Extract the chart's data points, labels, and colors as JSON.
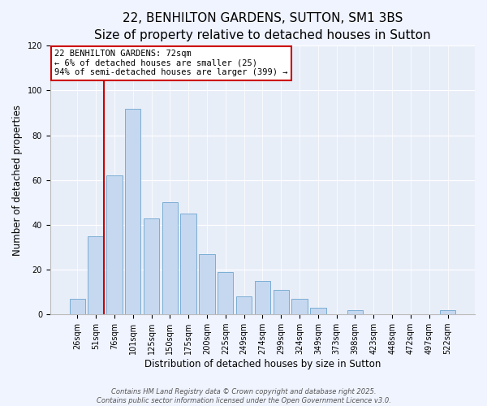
{
  "title": "22, BENHILTON GARDENS, SUTTON, SM1 3BS",
  "subtitle": "Size of property relative to detached houses in Sutton",
  "xlabel": "Distribution of detached houses by size in Sutton",
  "ylabel": "Number of detached properties",
  "bar_labels": [
    "26sqm",
    "51sqm",
    "76sqm",
    "101sqm",
    "125sqm",
    "150sqm",
    "175sqm",
    "200sqm",
    "225sqm",
    "249sqm",
    "274sqm",
    "299sqm",
    "324sqm",
    "349sqm",
    "373sqm",
    "398sqm",
    "423sqm",
    "448sqm",
    "472sqm",
    "497sqm",
    "522sqm"
  ],
  "bar_values": [
    7,
    35,
    62,
    92,
    43,
    50,
    45,
    27,
    19,
    8,
    15,
    11,
    7,
    3,
    0,
    2,
    0,
    0,
    0,
    0,
    2
  ],
  "bar_color": "#c5d8f0",
  "bar_edge_color": "#7badd4",
  "marker_color": "#cc0000",
  "annotation_title": "22 BENHILTON GARDENS: 72sqm",
  "annotation_line1": "← 6% of detached houses are smaller (25)",
  "annotation_line2": "94% of semi-detached houses are larger (399) →",
  "annotation_box_color": "#ffffff",
  "annotation_box_edge_color": "#cc0000",
  "ylim": [
    0,
    120
  ],
  "yticks": [
    0,
    20,
    40,
    60,
    80,
    100,
    120
  ],
  "footnote1": "Contains HM Land Registry data © Crown copyright and database right 2025.",
  "footnote2": "Contains public sector information licensed under the Open Government Licence v3.0.",
  "bg_color": "#f0f4ff",
  "plot_bg_color": "#e8eef8",
  "grid_color": "#ffffff",
  "title_fontsize": 11,
  "subtitle_fontsize": 9.5,
  "axis_label_fontsize": 8.5,
  "tick_fontsize": 7,
  "annotation_fontsize": 7.5,
  "footnote_fontsize": 6
}
